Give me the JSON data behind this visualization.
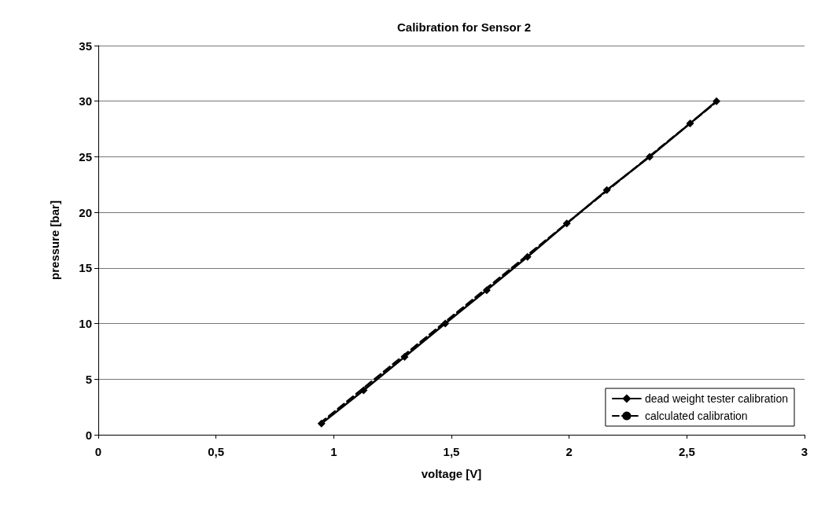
{
  "chart_data": {
    "type": "line",
    "title": "Calibration for Sensor 2",
    "xlabel": "voltage [V]",
    "ylabel": "pressure [bar]",
    "series": [
      {
        "name": "dead weight tester calibration",
        "color": "#000000",
        "x": [
          0.948,
          1.127,
          1.301,
          1.474,
          1.65,
          1.823,
          1.99,
          2.16,
          2.342,
          2.514,
          2.626
        ],
        "values": [
          1,
          4,
          7,
          10,
          13,
          16,
          19,
          22,
          25,
          28,
          30
        ],
        "marker": "diamond",
        "line_style": "solid"
      },
      {
        "name": "calculated calibration",
        "color": "#000000",
        "x": [
          0.94,
          2.63
        ],
        "values": [
          1,
          30
        ],
        "marker": "none",
        "line_style": "dashed"
      }
    ],
    "xlim": [
      0,
      3
    ],
    "xticks": [
      {
        "value": 0,
        "label": "0"
      },
      {
        "value": 0.5,
        "label": "0,5"
      },
      {
        "value": 1,
        "label": "1"
      },
      {
        "value": 1.5,
        "label": "1,5"
      },
      {
        "value": 2,
        "label": "2"
      },
      {
        "value": 2.5,
        "label": "2,5"
      },
      {
        "value": 3,
        "label": "3"
      }
    ],
    "ylim": [
      0,
      35
    ],
    "yticks": [
      0,
      5,
      10,
      15,
      20,
      25,
      30,
      35
    ],
    "grid": "y",
    "legend": "bottom right"
  }
}
